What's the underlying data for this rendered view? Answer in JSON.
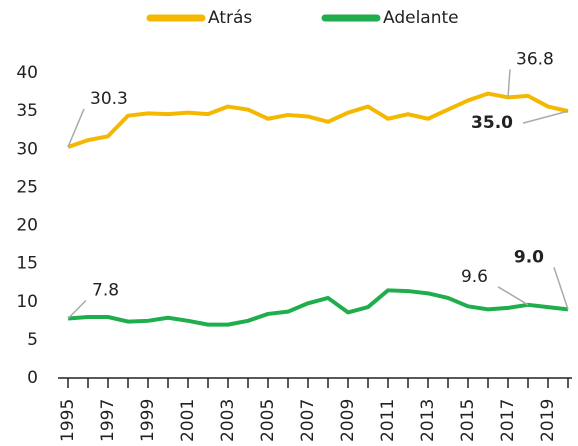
{
  "chart_data": {
    "type": "line",
    "categories": [
      "1995",
      null,
      "1997",
      null,
      "1999",
      null,
      "2001",
      null,
      "2003",
      null,
      "2005",
      null,
      "2007",
      null,
      "2009",
      null,
      "2011",
      null,
      "2013",
      null,
      "2015",
      null,
      "2017",
      null,
      "2019",
      null
    ],
    "series": [
      {
        "name": "Atrás",
        "color": "#f5b800",
        "values": [
          30.3,
          31.2,
          31.7,
          34.4,
          34.7,
          34.6,
          34.8,
          34.6,
          35.6,
          35.2,
          34.0,
          34.5,
          34.3,
          33.6,
          34.8,
          35.6,
          34.0,
          34.6,
          34.0,
          35.2,
          36.4,
          37.3,
          36.8,
          37.0,
          35.6,
          35.0
        ],
        "value_labels": [
          "30.3",
          null,
          null,
          null,
          null,
          null,
          null,
          null,
          null,
          null,
          null,
          null,
          null,
          null,
          null,
          null,
          null,
          null,
          null,
          null,
          null,
          null,
          "36.8",
          null,
          null,
          "35.0"
        ]
      },
      {
        "name": "Adelante",
        "color": "#1fae4b",
        "values": [
          7.8,
          8.0,
          8.0,
          7.4,
          7.5,
          7.9,
          7.5,
          7.0,
          7.0,
          7.5,
          8.4,
          8.7,
          9.8,
          10.5,
          8.6,
          9.3,
          11.5,
          11.4,
          11.1,
          10.5,
          9.4,
          9.0,
          9.2,
          9.6,
          9.3,
          9.0
        ],
        "value_labels": [
          "7.8",
          null,
          null,
          null,
          null,
          null,
          null,
          null,
          null,
          null,
          null,
          null,
          null,
          null,
          null,
          null,
          null,
          null,
          null,
          null,
          null,
          null,
          null,
          "9.6",
          null,
          "9.0"
        ]
      }
    ],
    "ylim": [
      0,
      40
    ],
    "yticks": [
      0,
      5,
      10,
      15,
      20,
      25,
      30,
      35,
      40
    ],
    "grid": false,
    "legend": "top"
  }
}
